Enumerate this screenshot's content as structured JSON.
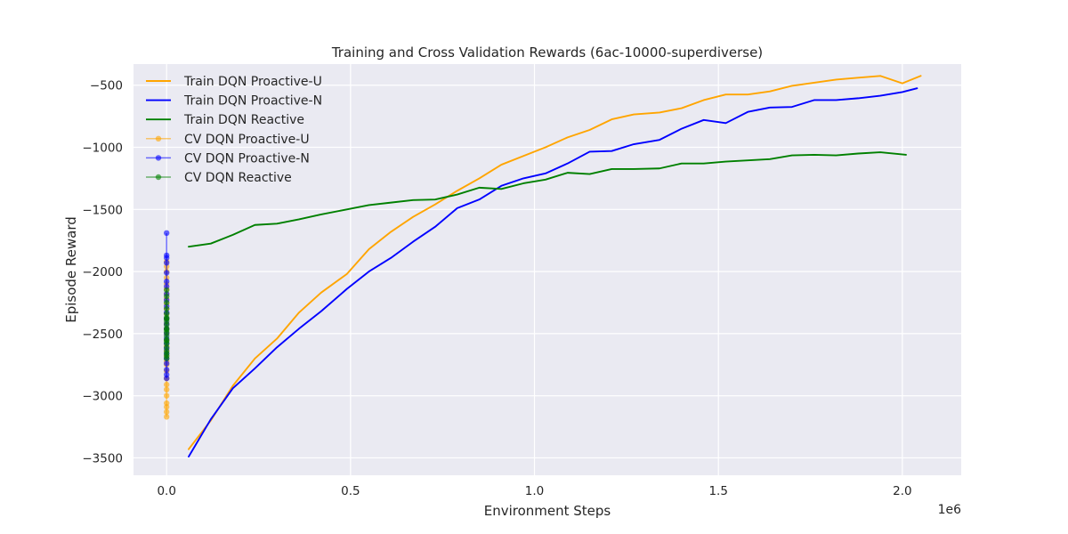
{
  "chart_data": {
    "type": "line",
    "title": "Training and Cross Validation Rewards (6ac-10000-superdiverse)",
    "xlabel": "Environment Steps",
    "ylabel": "Episode Reward",
    "x_offset_label": "1e6",
    "xlim": [
      -0.09,
      2.16
    ],
    "ylim": [
      -3640,
      -330
    ],
    "xticks": [
      0.0,
      0.5,
      1.0,
      1.5,
      2.0
    ],
    "xtick_labels": [
      "0.0",
      "0.5",
      "1.0",
      "1.5",
      "2.0"
    ],
    "yticks": [
      -3500,
      -3000,
      -2500,
      -2000,
      -1500,
      -1000,
      -500
    ],
    "ytick_labels": [
      "−3500",
      "−3000",
      "−2500",
      "−2000",
      "−1500",
      "−1000",
      "−500"
    ],
    "grid": true,
    "legend_position": "top-left",
    "colors": {
      "orange": "#ffa500",
      "blue": "#0000ff",
      "green": "#008000",
      "background": "#eaeaf2",
      "grid": "#ffffff"
    },
    "series": [
      {
        "name": "Train DQN Proactive-U",
        "kind": "train",
        "color": "#ffa500",
        "x": [
          0.06,
          0.12,
          0.18,
          0.24,
          0.3,
          0.36,
          0.42,
          0.49,
          0.55,
          0.61,
          0.67,
          0.73,
          0.79,
          0.85,
          0.91,
          0.97,
          1.03,
          1.09,
          1.15,
          1.21,
          1.27,
          1.34,
          1.4,
          1.46,
          1.52,
          1.58,
          1.64,
          1.7,
          1.76,
          1.82,
          1.88,
          1.94,
          2.0,
          2.05
        ],
        "y": [
          -3430,
          -3200,
          -2920,
          -2700,
          -2540,
          -2330,
          -2170,
          -2020,
          -1820,
          -1680,
          -1560,
          -1460,
          -1350,
          -1250,
          -1140,
          -1070,
          -1000,
          -920,
          -860,
          -775,
          -735,
          -720,
          -685,
          -620,
          -575,
          -575,
          -550,
          -505,
          -480,
          -455,
          -440,
          -425,
          -485,
          -425
        ]
      },
      {
        "name": "Train DQN Proactive-N",
        "kind": "train",
        "color": "#0000ff",
        "x": [
          0.06,
          0.12,
          0.18,
          0.24,
          0.3,
          0.36,
          0.42,
          0.49,
          0.55,
          0.61,
          0.67,
          0.73,
          0.79,
          0.85,
          0.91,
          0.97,
          1.03,
          1.09,
          1.15,
          1.21,
          1.27,
          1.34,
          1.4,
          1.46,
          1.52,
          1.58,
          1.64,
          1.7,
          1.76,
          1.82,
          1.88,
          1.94,
          2.0,
          2.04
        ],
        "y": [
          -3490,
          -3190,
          -2940,
          -2780,
          -2610,
          -2460,
          -2320,
          -2140,
          -2000,
          -1890,
          -1760,
          -1640,
          -1490,
          -1420,
          -1310,
          -1250,
          -1210,
          -1130,
          -1035,
          -1030,
          -975,
          -940,
          -850,
          -780,
          -805,
          -715,
          -680,
          -675,
          -620,
          -620,
          -605,
          -585,
          -555,
          -525
        ]
      },
      {
        "name": "Train DQN Reactive",
        "kind": "train",
        "color": "#008000",
        "x": [
          0.06,
          0.12,
          0.18,
          0.24,
          0.3,
          0.36,
          0.42,
          0.49,
          0.55,
          0.61,
          0.67,
          0.73,
          0.79,
          0.85,
          0.91,
          0.97,
          1.03,
          1.09,
          1.15,
          1.21,
          1.27,
          1.34,
          1.4,
          1.46,
          1.52,
          1.58,
          1.64,
          1.7,
          1.76,
          1.82,
          1.88,
          1.94,
          2.01
        ],
        "y": [
          -1800,
          -1775,
          -1705,
          -1625,
          -1615,
          -1580,
          -1540,
          -1500,
          -1465,
          -1445,
          -1425,
          -1420,
          -1380,
          -1325,
          -1335,
          -1290,
          -1260,
          -1205,
          -1215,
          -1175,
          -1175,
          -1170,
          -1130,
          -1130,
          -1115,
          -1105,
          -1095,
          -1065,
          -1060,
          -1065,
          -1050,
          -1040,
          -1060
        ]
      },
      {
        "name": "CV DQN Proactive-U",
        "kind": "cv",
        "color": "#ffa500",
        "x": [
          0,
          0,
          0,
          0,
          0,
          0,
          0,
          0,
          0,
          0,
          0,
          0,
          0,
          0,
          0,
          0,
          0,
          0,
          0,
          0,
          0,
          0,
          0,
          0,
          0,
          0,
          0,
          0,
          0,
          0
        ],
        "y": [
          -3170,
          -3130,
          -3090,
          -3060,
          -3000,
          -2950,
          -2910,
          -2860,
          -2800,
          -2750,
          -2720,
          -2680,
          -2640,
          -2600,
          -2550,
          -2500,
          -2460,
          -2420,
          -2380,
          -2340,
          -2300,
          -2260,
          -2220,
          -2180,
          -2140,
          -2100,
          -2050,
          -2000,
          -1960,
          -1920
        ]
      },
      {
        "name": "CV DQN Proactive-N",
        "kind": "cv",
        "color": "#0000ff",
        "x": [
          0,
          0,
          0,
          0,
          0,
          0,
          0,
          0,
          0,
          0,
          0,
          0,
          0,
          0,
          0,
          0,
          0,
          0,
          0,
          0,
          0,
          0,
          0,
          0
        ],
        "y": [
          -1690,
          -1870,
          -1890,
          -1930,
          -2010,
          -2080,
          -2120,
          -2180,
          -2230,
          -2280,
          -2330,
          -2380,
          -2420,
          -2460,
          -2500,
          -2540,
          -2580,
          -2620,
          -2660,
          -2700,
          -2740,
          -2790,
          -2830,
          -2860
        ]
      },
      {
        "name": "CV DQN Reactive",
        "kind": "cv",
        "color": "#008000",
        "x": [
          0,
          0,
          0,
          0,
          0,
          0,
          0,
          0,
          0,
          0,
          0,
          0,
          0,
          0,
          0,
          0,
          0,
          0,
          0,
          0,
          0
        ],
        "y": [
          -2150,
          -2200,
          -2250,
          -2300,
          -2340,
          -2370,
          -2400,
          -2430,
          -2460,
          -2490,
          -2520,
          -2550,
          -2580,
          -2610,
          -2640,
          -2660,
          -2680,
          -2700,
          -2560,
          -2470,
          -2380
        ]
      }
    ]
  }
}
